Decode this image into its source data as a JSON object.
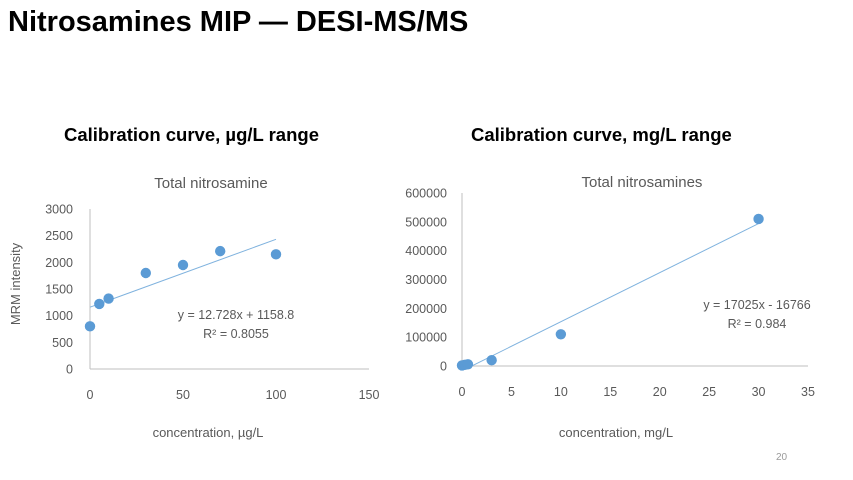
{
  "slide": {
    "title": "Nitrosamines MIP — DESI-MS/MS",
    "page_number": "20"
  },
  "panels": [
    {
      "heading": "Calibration curve, µg/L range"
    },
    {
      "heading": "Calibration curve, mg/L range"
    }
  ],
  "colors": {
    "marker": "#5b9bd5",
    "trendline": "#7fb2de",
    "axis": "#bfbfbf",
    "text": "#595959",
    "title_text": "#595959"
  },
  "chart_data": [
    {
      "type": "scatter",
      "title": "Total nitrosamine",
      "xlabel": "concentration, µg/L",
      "ylabel": "MRM intensity",
      "xlim": [
        0,
        150
      ],
      "ylim": [
        0,
        3000
      ],
      "x_ticks": [
        0,
        50,
        100,
        150
      ],
      "y_ticks": [
        0,
        500,
        1000,
        1500,
        2000,
        2500,
        3000
      ],
      "grid": false,
      "series": [
        {
          "points": [
            [
              0,
              800
            ],
            [
              5,
              1220
            ],
            [
              10,
              1320
            ],
            [
              30,
              1800
            ],
            [
              50,
              1950
            ],
            [
              70,
              2210
            ],
            [
              100,
              2150
            ]
          ]
        }
      ],
      "trendline": {
        "slope": 12.728,
        "intercept": 1158.8,
        "x_range": [
          0,
          100
        ],
        "equation": "y = 12.728x + 1158.8",
        "r_squared": "R² = 0.8055"
      }
    },
    {
      "type": "scatter",
      "title": "Total nitrosamines",
      "xlabel": "concentration, mg/L",
      "ylabel": "",
      "xlim": [
        0,
        35
      ],
      "ylim": [
        0,
        600000
      ],
      "x_ticks": [
        0,
        5,
        10,
        15,
        20,
        25,
        30,
        35
      ],
      "y_ticks": [
        0,
        100000,
        200000,
        300000,
        400000,
        500000,
        600000
      ],
      "grid": false,
      "series": [
        {
          "points": [
            [
              0,
              2000
            ],
            [
              0.3,
              4000
            ],
            [
              0.6,
              6000
            ],
            [
              3,
              20000
            ],
            [
              10,
              110000
            ],
            [
              30,
              510000
            ]
          ]
        }
      ],
      "trendline": {
        "slope": 17025,
        "intercept": -16766,
        "x_range": [
          1,
          30
        ],
        "equation": "y = 17025x - 16766",
        "r_squared": "R² = 0.984"
      }
    }
  ]
}
